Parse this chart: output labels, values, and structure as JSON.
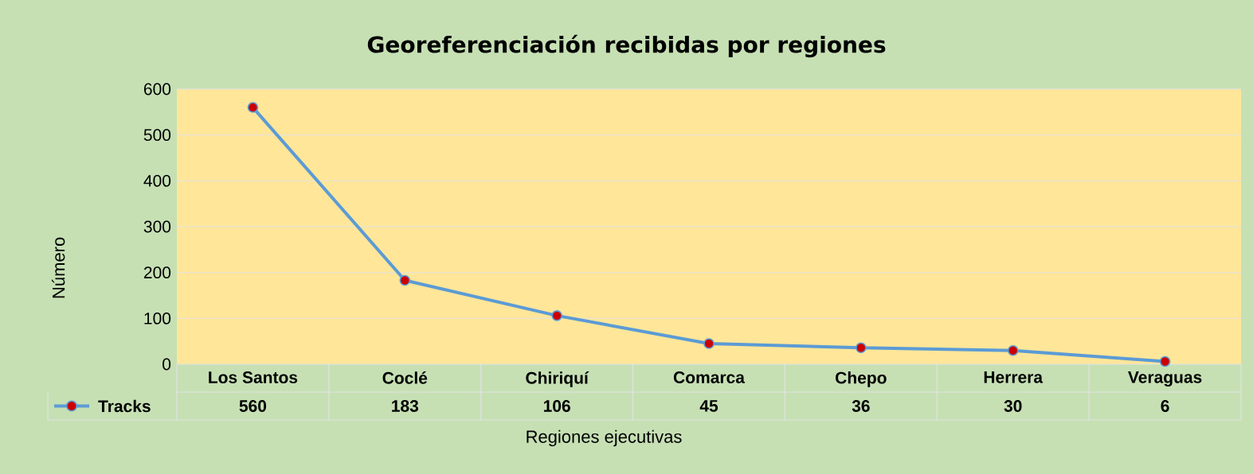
{
  "chart_data": {
    "type": "line",
    "title": "Georeferenciación recibidas por regiones",
    "xlabel": "Regiones ejecutivas",
    "ylabel": "Número",
    "categories": [
      "Los Santos",
      "Coclé",
      "Chiriquí",
      "Comarca",
      "Chepo",
      "Herrera",
      "Veraguas"
    ],
    "series": [
      {
        "name": "Tracks",
        "color": "#5b9bd5",
        "values": [
          560,
          183,
          106,
          45,
          36,
          30,
          6
        ]
      }
    ],
    "ylim": [
      0,
      600
    ],
    "yticks": [
      0,
      100,
      200,
      300,
      400,
      500,
      600
    ],
    "grid": "y",
    "legend": "bottom left",
    "marker": "circle",
    "line_style": "solid",
    "data_labels": true
  }
}
